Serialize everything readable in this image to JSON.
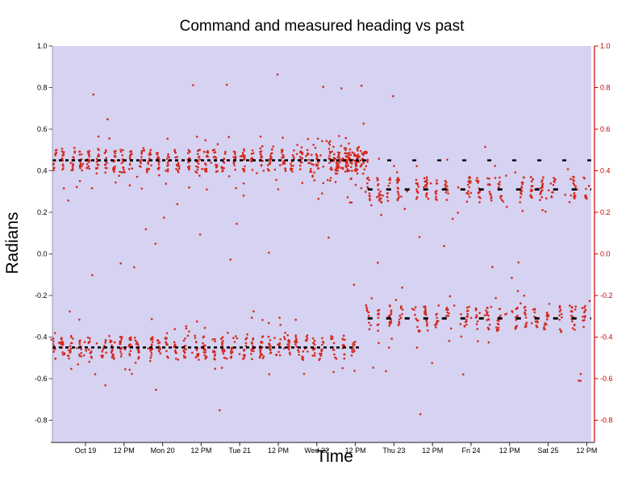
{
  "title": "Command and measured heading vs past",
  "axes": {
    "ylabel": "Radians",
    "xlabel": "Time"
  },
  "chart_data": {
    "type": "scatter",
    "title": "Command and measured heading vs past",
    "xlabel": "Time",
    "ylabel": "Radians",
    "ylim": [
      -0.907,
      1.0
    ],
    "grid": false,
    "legend": "none",
    "plot_bg_color": "#d6d2f1",
    "point_color": "#d42a1e",
    "command_color": "#000000",
    "right_axis_color": "#cc0000",
    "left_spine_color": "#9a98b8",
    "bottom_spine_color": "#222222",
    "y_tick_values": [
      1.0,
      0.8,
      0.6,
      0.4,
      0.2,
      0.0,
      -0.2,
      -0.4,
      -0.6,
      -0.8
    ],
    "y_tick_labels": [
      "1.0",
      "0.8",
      "0.6",
      "0.4",
      "0.2",
      "0.0",
      "-0.2",
      "-0.4",
      "-0.6",
      "-0.8"
    ],
    "x_tick_labels": [
      "Oct 19",
      "12 PM",
      "Mon 20",
      "12 PM",
      "Tue 21",
      "12 PM",
      "Wed 22",
      "12 PM",
      "Thu 23",
      "12 PM",
      "Fri 24",
      "12 PM",
      "Sat 25",
      "12 PM"
    ],
    "x_tick_positions": [
      0.0614,
      0.1329,
      0.2045,
      0.276,
      0.3476,
      0.4192,
      0.4907,
      0.5623,
      0.6338,
      0.7054,
      0.7769,
      0.8485,
      0.92,
      0.9916
    ],
    "series": [
      {
        "name": "command heading",
        "type": "dashed-line-segments",
        "color": "#000000",
        "segments": [
          {
            "y": 0.45,
            "x0": 0.0,
            "x1": 0.575,
            "dash": [
              4,
              4
            ],
            "width": 2.6
          },
          {
            "y": 0.45,
            "x0": 0.575,
            "x1": 1.0,
            "dash": [
              5,
              26
            ],
            "width": 2.4
          },
          {
            "y": -0.45,
            "x0": 0.0,
            "x1": 0.572,
            "dash": [
              4,
              4
            ],
            "width": 2.6
          },
          {
            "y": 0.31,
            "x0": 0.585,
            "x1": 1.0,
            "dash": [
              6,
              17
            ],
            "width": 2.8
          },
          {
            "y": -0.31,
            "x0": 0.585,
            "x1": 1.0,
            "dash": [
              6,
              17
            ],
            "width": 2.8
          }
        ]
      },
      {
        "name": "measured heading",
        "type": "points",
        "color": "#d42a1e",
        "bands": [
          {
            "x0": 0.0,
            "x1": 0.57,
            "y": 0.45,
            "cluster_spacing": 0.016,
            "group_size": 5,
            "group_gap": 0.006,
            "points_per_cluster": 14,
            "y_spread": 0.055
          },
          {
            "x0": 0.0,
            "x1": 0.568,
            "y": -0.45,
            "cluster_spacing": 0.016,
            "group_size": 5,
            "group_gap": 0.006,
            "points_per_cluster": 14,
            "y_spread": 0.055
          },
          {
            "x0": 0.585,
            "x1": 1.0,
            "y": 0.31,
            "cluster_spacing": 0.02,
            "group_size": 4,
            "group_gap": 0.013,
            "points_per_cluster": 12,
            "y_spread": 0.06
          },
          {
            "x0": 0.585,
            "x1": 1.0,
            "y": -0.31,
            "cluster_spacing": 0.02,
            "group_size": 4,
            "group_gap": 0.013,
            "points_per_cluster": 12,
            "y_spread": 0.06
          }
        ],
        "transition_blob": {
          "x0": 0.52,
          "x1": 0.585,
          "y": 0.45,
          "count": 90,
          "y_spread": 0.09
        },
        "transition_halo": {
          "x0": 0.48,
          "x1": 0.59,
          "y": 0.42,
          "count": 45,
          "y_spread": 0.25
        },
        "scatter_outliers": {
          "count": 250,
          "y_min": -0.86,
          "y_max": 0.88
        }
      }
    ]
  }
}
